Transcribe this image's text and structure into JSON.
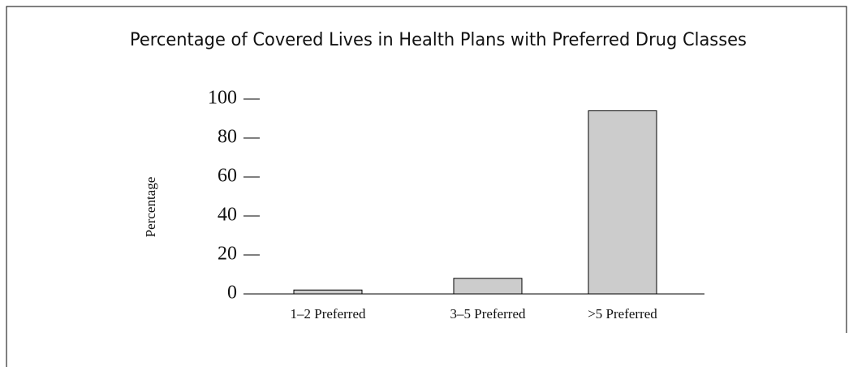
{
  "chart_data": {
    "type": "bar",
    "title": "Percentage of Covered Lives in Health Plans with Preferred Drug Classes",
    "y_label": "Percentage",
    "categories": [
      "1–2 Preferred",
      "3–5 Preferred",
      ">5 Preferred"
    ],
    "values": [
      2,
      8,
      94
    ],
    "color": "#cccccc",
    "ylim": [
      0,
      100
    ],
    "yticks": [
      0,
      20,
      40,
      60,
      80,
      100
    ],
    "grid": false
  }
}
